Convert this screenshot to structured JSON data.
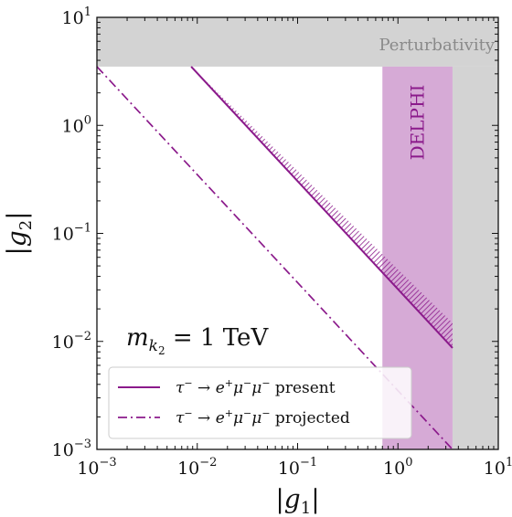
{
  "chart_data": {
    "type": "line",
    "xscale": "log",
    "yscale": "log",
    "xlim": [
      0.001,
      10
    ],
    "ylim": [
      0.001,
      10
    ],
    "xlabel": "|g1|",
    "ylabel": "|g2|",
    "x_ticks": [
      0.001,
      0.01,
      0.1,
      1,
      10
    ],
    "y_ticks": [
      0.001,
      0.01,
      0.1,
      1,
      10
    ],
    "x_tick_labels": [
      {
        "base": "10",
        "exp": "−3"
      },
      {
        "base": "10",
        "exp": "−2"
      },
      {
        "base": "10",
        "exp": "−1"
      },
      {
        "base": "10",
        "exp": "0"
      },
      {
        "base": "10",
        "exp": "1"
      }
    ],
    "y_tick_labels": [
      {
        "base": "10",
        "exp": "−3"
      },
      {
        "base": "10",
        "exp": "−2"
      },
      {
        "base": "10",
        "exp": "−1"
      },
      {
        "base": "10",
        "exp": "0"
      },
      {
        "base": "10",
        "exp": "1"
      }
    ],
    "annotation": {
      "main": "m",
      "sub": "k",
      "subsub": "2",
      "rest": " = 1 TeV"
    },
    "regions": [
      {
        "name": "Perturbativity",
        "label": "Perturbativity",
        "color": "#d3d3d3",
        "g_max": 3.5
      },
      {
        "name": "DELPHI",
        "label": "DELPHI",
        "color": "#d6aad6",
        "x_range": [
          0.7,
          3.5
        ]
      }
    ],
    "series": [
      {
        "name": "τ− → e+μ−μ− present",
        "style": "solid",
        "color": "#8b1a8b",
        "x": [
          0.0087,
          3.5
        ],
        "y": [
          3.5,
          0.0087
        ]
      },
      {
        "name": "τ− → e+μ−μ− projected",
        "style": "dashdot",
        "color": "#8b1a8b",
        "x": [
          0.001,
          3.5
        ],
        "y": [
          3.5,
          0.001
        ]
      }
    ],
    "excluded_band": {
      "hatched": true,
      "color": "#8b1a8b",
      "x": [
        0.0087,
        3.5
      ],
      "y_lower": [
        3.5,
        0.0087
      ],
      "y_upper": [
        3.5,
        0.0148
      ]
    },
    "legend": {
      "placement": "lower-left",
      "entries": [
        {
          "lhs": "τ",
          "lhs_sup": "−",
          "arrow": " → ",
          "p1": "e",
          "p1_sup": "+",
          "p2": "μ",
          "p2_sup": "−",
          "p3": "μ",
          "p3_sup": "−",
          "word": "present",
          "style": "solid"
        },
        {
          "lhs": "τ",
          "lhs_sup": "−",
          "arrow": " → ",
          "p1": "e",
          "p1_sup": "+",
          "p2": "μ",
          "p2_sup": "−",
          "p3": "μ",
          "p3_sup": "−",
          "word": "projected",
          "style": "dashdot"
        }
      ]
    }
  }
}
